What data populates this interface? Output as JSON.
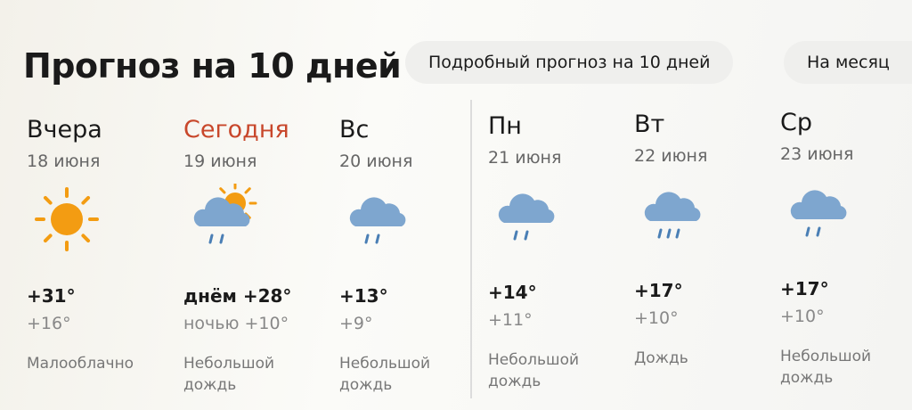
{
  "header": {
    "title": "Прогноз на 10 дней",
    "detailed_button": "Подробный прогноз на 10 дней",
    "month_button": "На месяц"
  },
  "colors": {
    "today": "#c8472b",
    "sun": "#f39c12",
    "cloud": "#7ea6cf",
    "rain": "#4a7fb5"
  },
  "days": [
    {
      "day": "Вчера",
      "date": "18 июня",
      "icon": "sun-icon",
      "hi": "+31°",
      "lo": "+16°",
      "condition": "Малооблачно"
    },
    {
      "day": "Сегодня",
      "date": "19 июня",
      "icon": "partly-cloudy-rain-icon",
      "hi": "днём +28°",
      "lo": "ночью +10°",
      "condition": "Небольшой дождь"
    },
    {
      "day": "Вс",
      "date": "20 июня",
      "icon": "light-rain-icon",
      "hi": "+13°",
      "lo": "+9°",
      "condition": "Небольшой дождь"
    },
    {
      "day": "Пн",
      "date": "21 июня",
      "icon": "light-rain-icon",
      "hi": "+14°",
      "lo": "+11°",
      "condition": "Небольшой дождь"
    },
    {
      "day": "Вт",
      "date": "22 июня",
      "icon": "rain-icon",
      "hi": "+17°",
      "lo": "+10°",
      "condition": "Дождь"
    },
    {
      "day": "Ср",
      "date": "23 июня",
      "icon": "light-rain-icon",
      "hi": "+17°",
      "lo": "+10°",
      "condition": "Небольшой дождь"
    }
  ]
}
